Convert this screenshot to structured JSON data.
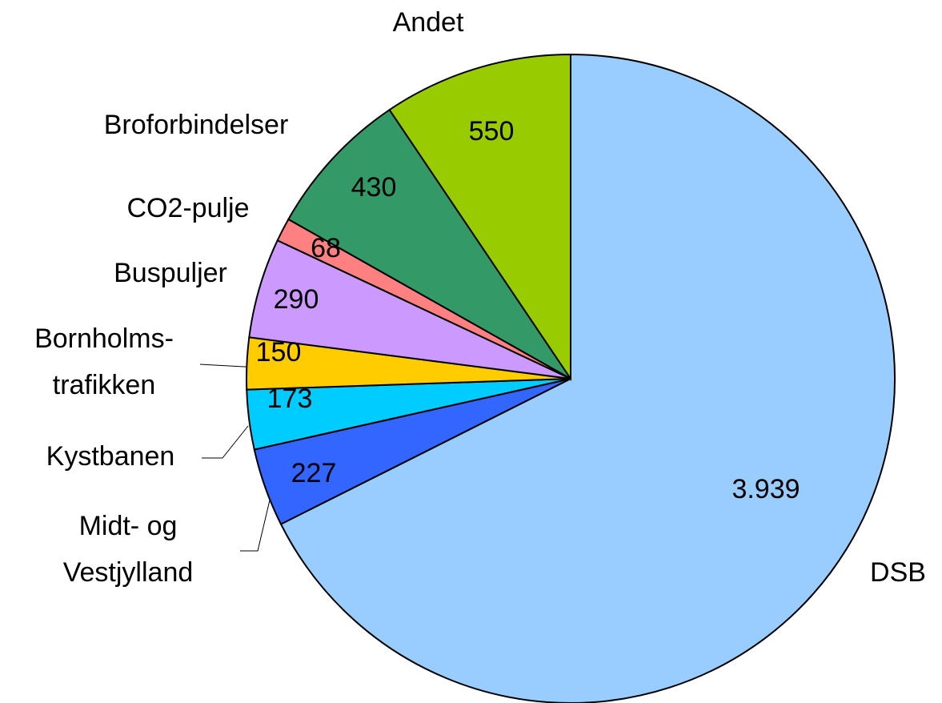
{
  "chart_data": {
    "type": "pie",
    "categories": [
      "DSB",
      "Midt- og\nVestjylland",
      "Kystbanen",
      "Bornholms-\ntrafikken",
      "Buspuljer",
      "CO2-pulje",
      "Broforbindelser",
      "Andet"
    ],
    "values": [
      3939,
      227,
      173,
      150,
      290,
      68,
      430,
      550
    ],
    "value_labels": [
      "3.939",
      "227",
      "173",
      "150",
      "290",
      "68",
      "430",
      "550"
    ],
    "colors": [
      "#99ccff",
      "#3366ff",
      "#00ccff",
      "#ffcc00",
      "#cc99ff",
      "#ff8080",
      "#339966",
      "#99cc00"
    ]
  }
}
